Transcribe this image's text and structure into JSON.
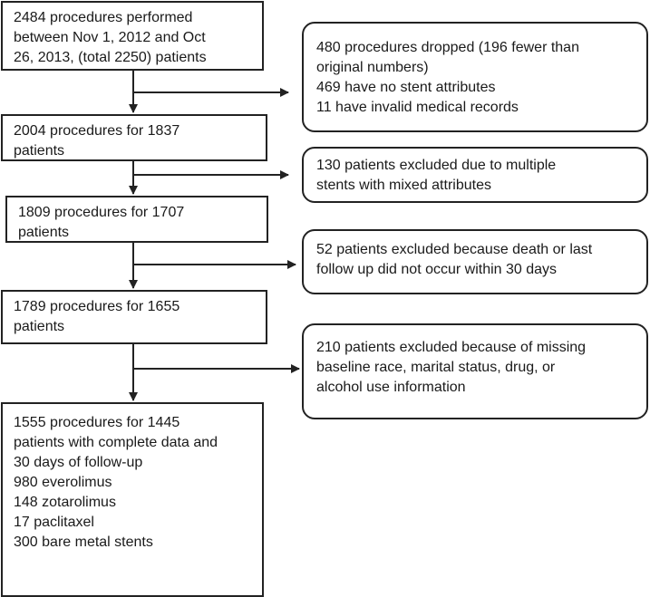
{
  "main_steps": [
    {
      "lines": [
        "2484 procedures performed",
        "between Nov 1, 2012 and Oct",
        "26, 2013, (total 2250) patients"
      ]
    },
    {
      "lines": [
        "2004 procedures for 1837",
        "patients"
      ]
    },
    {
      "lines": [
        "1809 procedures for 1707",
        "patients"
      ]
    },
    {
      "lines": [
        "1789 procedures for 1655",
        "patients"
      ]
    },
    {
      "lines": [
        "1555 procedures for 1445",
        "patients with complete data and",
        "30 days of follow-up",
        "980 everolimus",
        "148 zotarolimus",
        "17 paclitaxel",
        "300 bare metal stents"
      ]
    }
  ],
  "exclusions": [
    {
      "lines": [
        "480 procedures dropped (196 fewer than",
        "original numbers)",
        "469 have no stent attributes",
        "11 have invalid medical records"
      ]
    },
    {
      "lines": [
        "130 patients excluded due to multiple",
        "stents with mixed attributes"
      ]
    },
    {
      "lines": [
        "52 patients excluded because death or last",
        "follow up did not occur within 30 days"
      ]
    },
    {
      "lines": [
        "210 patients excluded because of missing",
        "baseline race, marital status, drug, or",
        "alcohol use information"
      ]
    }
  ]
}
